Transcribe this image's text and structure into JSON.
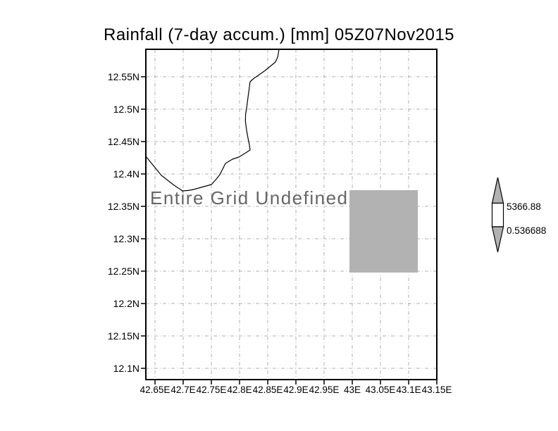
{
  "title": "Rainfall (7-day accum.) [mm] 05Z07Nov2015",
  "overlay_message": "Entire Grid Undefined",
  "y_axis": {
    "tick_labels": [
      "12.55N",
      "12.5N",
      "12.45N",
      "12.4N",
      "12.35N",
      "12.3N",
      "12.25N",
      "12.2N",
      "12.15N",
      "12.1N"
    ]
  },
  "x_axis": {
    "tick_labels": [
      "42.65E",
      "42.7E",
      "42.75E",
      "42.8E",
      "42.85E",
      "42.9E",
      "42.95E",
      "43E",
      "43.05E",
      "43.1E",
      "43.15E"
    ]
  },
  "colorbar": {
    "max_label": "5366.88",
    "min_label": "0.536688"
  },
  "colors": {
    "patch_gray": "#b2b2b2",
    "colorbar_gray": "#b2b2b2",
    "grid_gray": "#b0b0b0",
    "overlay_text": "#666666",
    "frame_black": "#000000"
  },
  "chart_data": {
    "type": "heatmap",
    "title": "Rainfall (7-day accum.) [mm] 05Z07Nov2015",
    "xlabel": "",
    "ylabel": "",
    "x_tick_labels": [
      "42.65E",
      "42.7E",
      "42.75E",
      "42.8E",
      "42.85E",
      "42.9E",
      "42.95E",
      "43E",
      "43.05E",
      "43.1E",
      "43.15E"
    ],
    "y_tick_labels": [
      "12.55N",
      "12.5N",
      "12.45N",
      "12.4N",
      "12.35N",
      "12.3N",
      "12.25N",
      "12.2N",
      "12.15N",
      "12.1N"
    ],
    "xlim": [
      42.63,
      43.15
    ],
    "ylim": [
      12.09,
      12.59
    ],
    "grid": true,
    "coastline_shown": true,
    "status_annotation": "Entire Grid Undefined",
    "values": [],
    "undefined_patch_extent": {
      "lon": [
        42.995,
        43.115
      ],
      "lat": [
        12.25,
        12.375
      ]
    },
    "colorbar": {
      "min": 0.536688,
      "max": 5366.88,
      "min_label": "0.536688",
      "max_label": "5366.88",
      "position": "right"
    }
  }
}
